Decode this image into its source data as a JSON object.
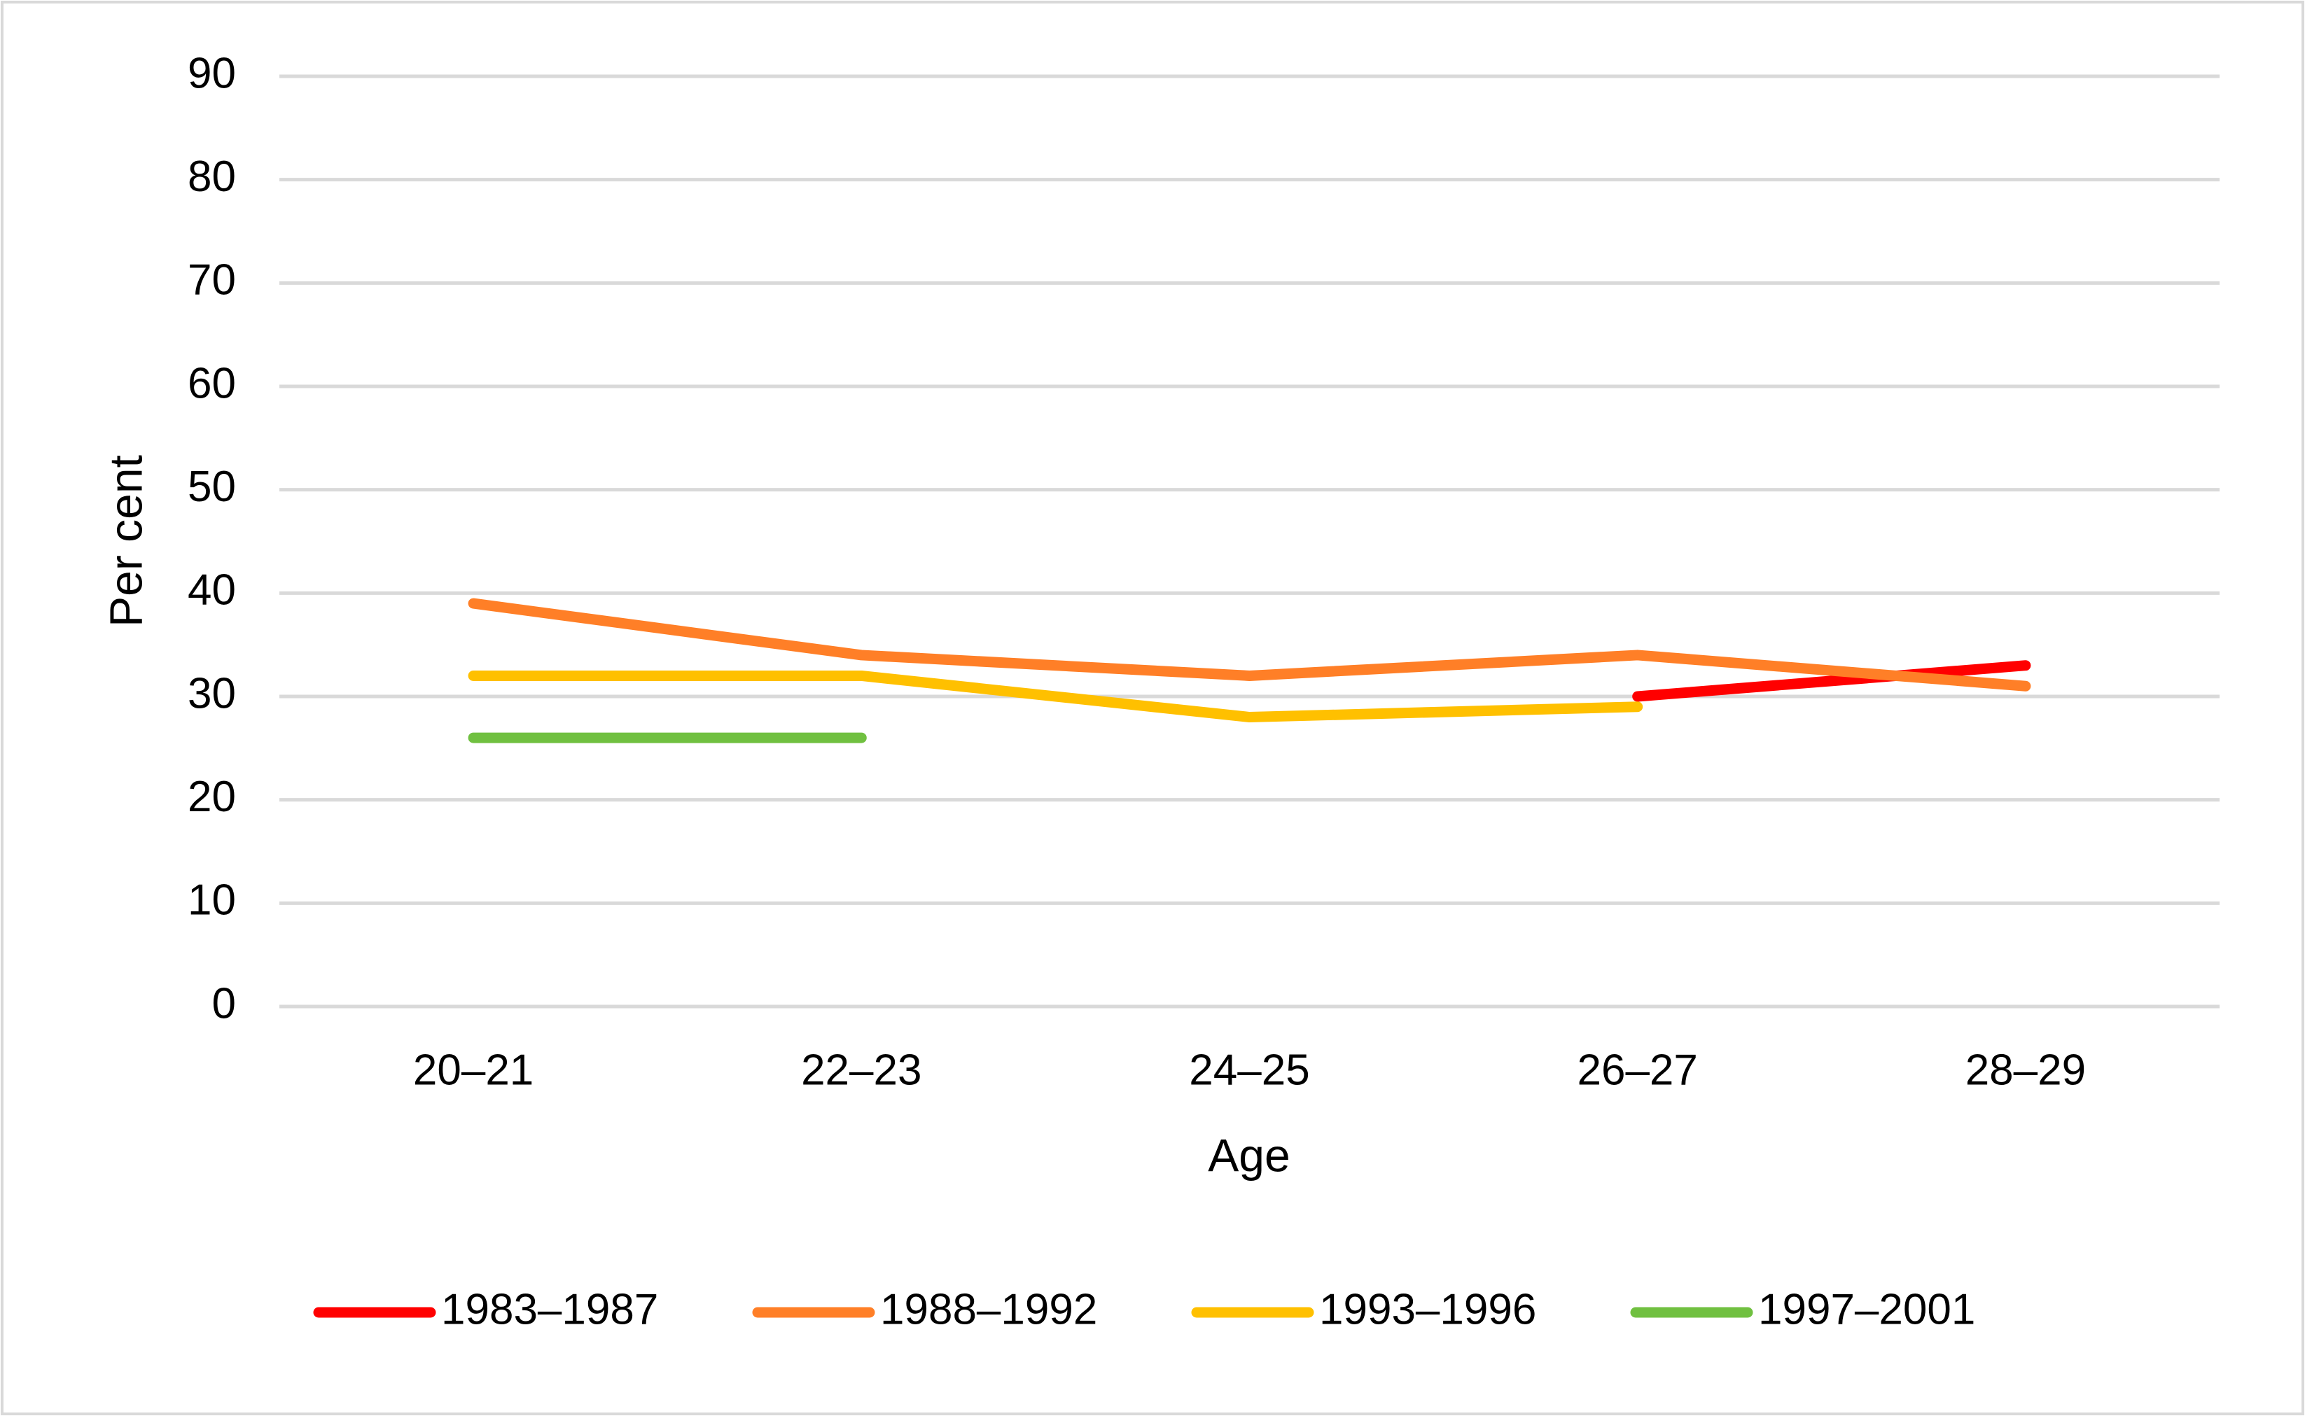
{
  "chart_data": {
    "type": "line",
    "x_label": "Age",
    "y_label": "Per cent",
    "categories": [
      "20–21",
      "22–23",
      "24–25",
      "26–27",
      "28–29"
    ],
    "series": [
      {
        "name": "1983–1987",
        "color": "#ff0000",
        "values": [
          null,
          null,
          null,
          30,
          33
        ]
      },
      {
        "name": "1988–1992",
        "color": "#ff7f27",
        "values": [
          39,
          34,
          32,
          34,
          31
        ]
      },
      {
        "name": "1993–1996",
        "color": "#ffc000",
        "values": [
          32,
          32,
          28,
          29,
          null
        ]
      },
      {
        "name": "1997–2001",
        "color": "#70c040",
        "values": [
          26,
          26,
          null,
          null,
          null
        ]
      }
    ],
    "ylim": [
      0,
      90
    ],
    "yticks": [
      0,
      10,
      20,
      30,
      40,
      50,
      60,
      70,
      80,
      90
    ],
    "grid": true,
    "legend": "bottom"
  }
}
